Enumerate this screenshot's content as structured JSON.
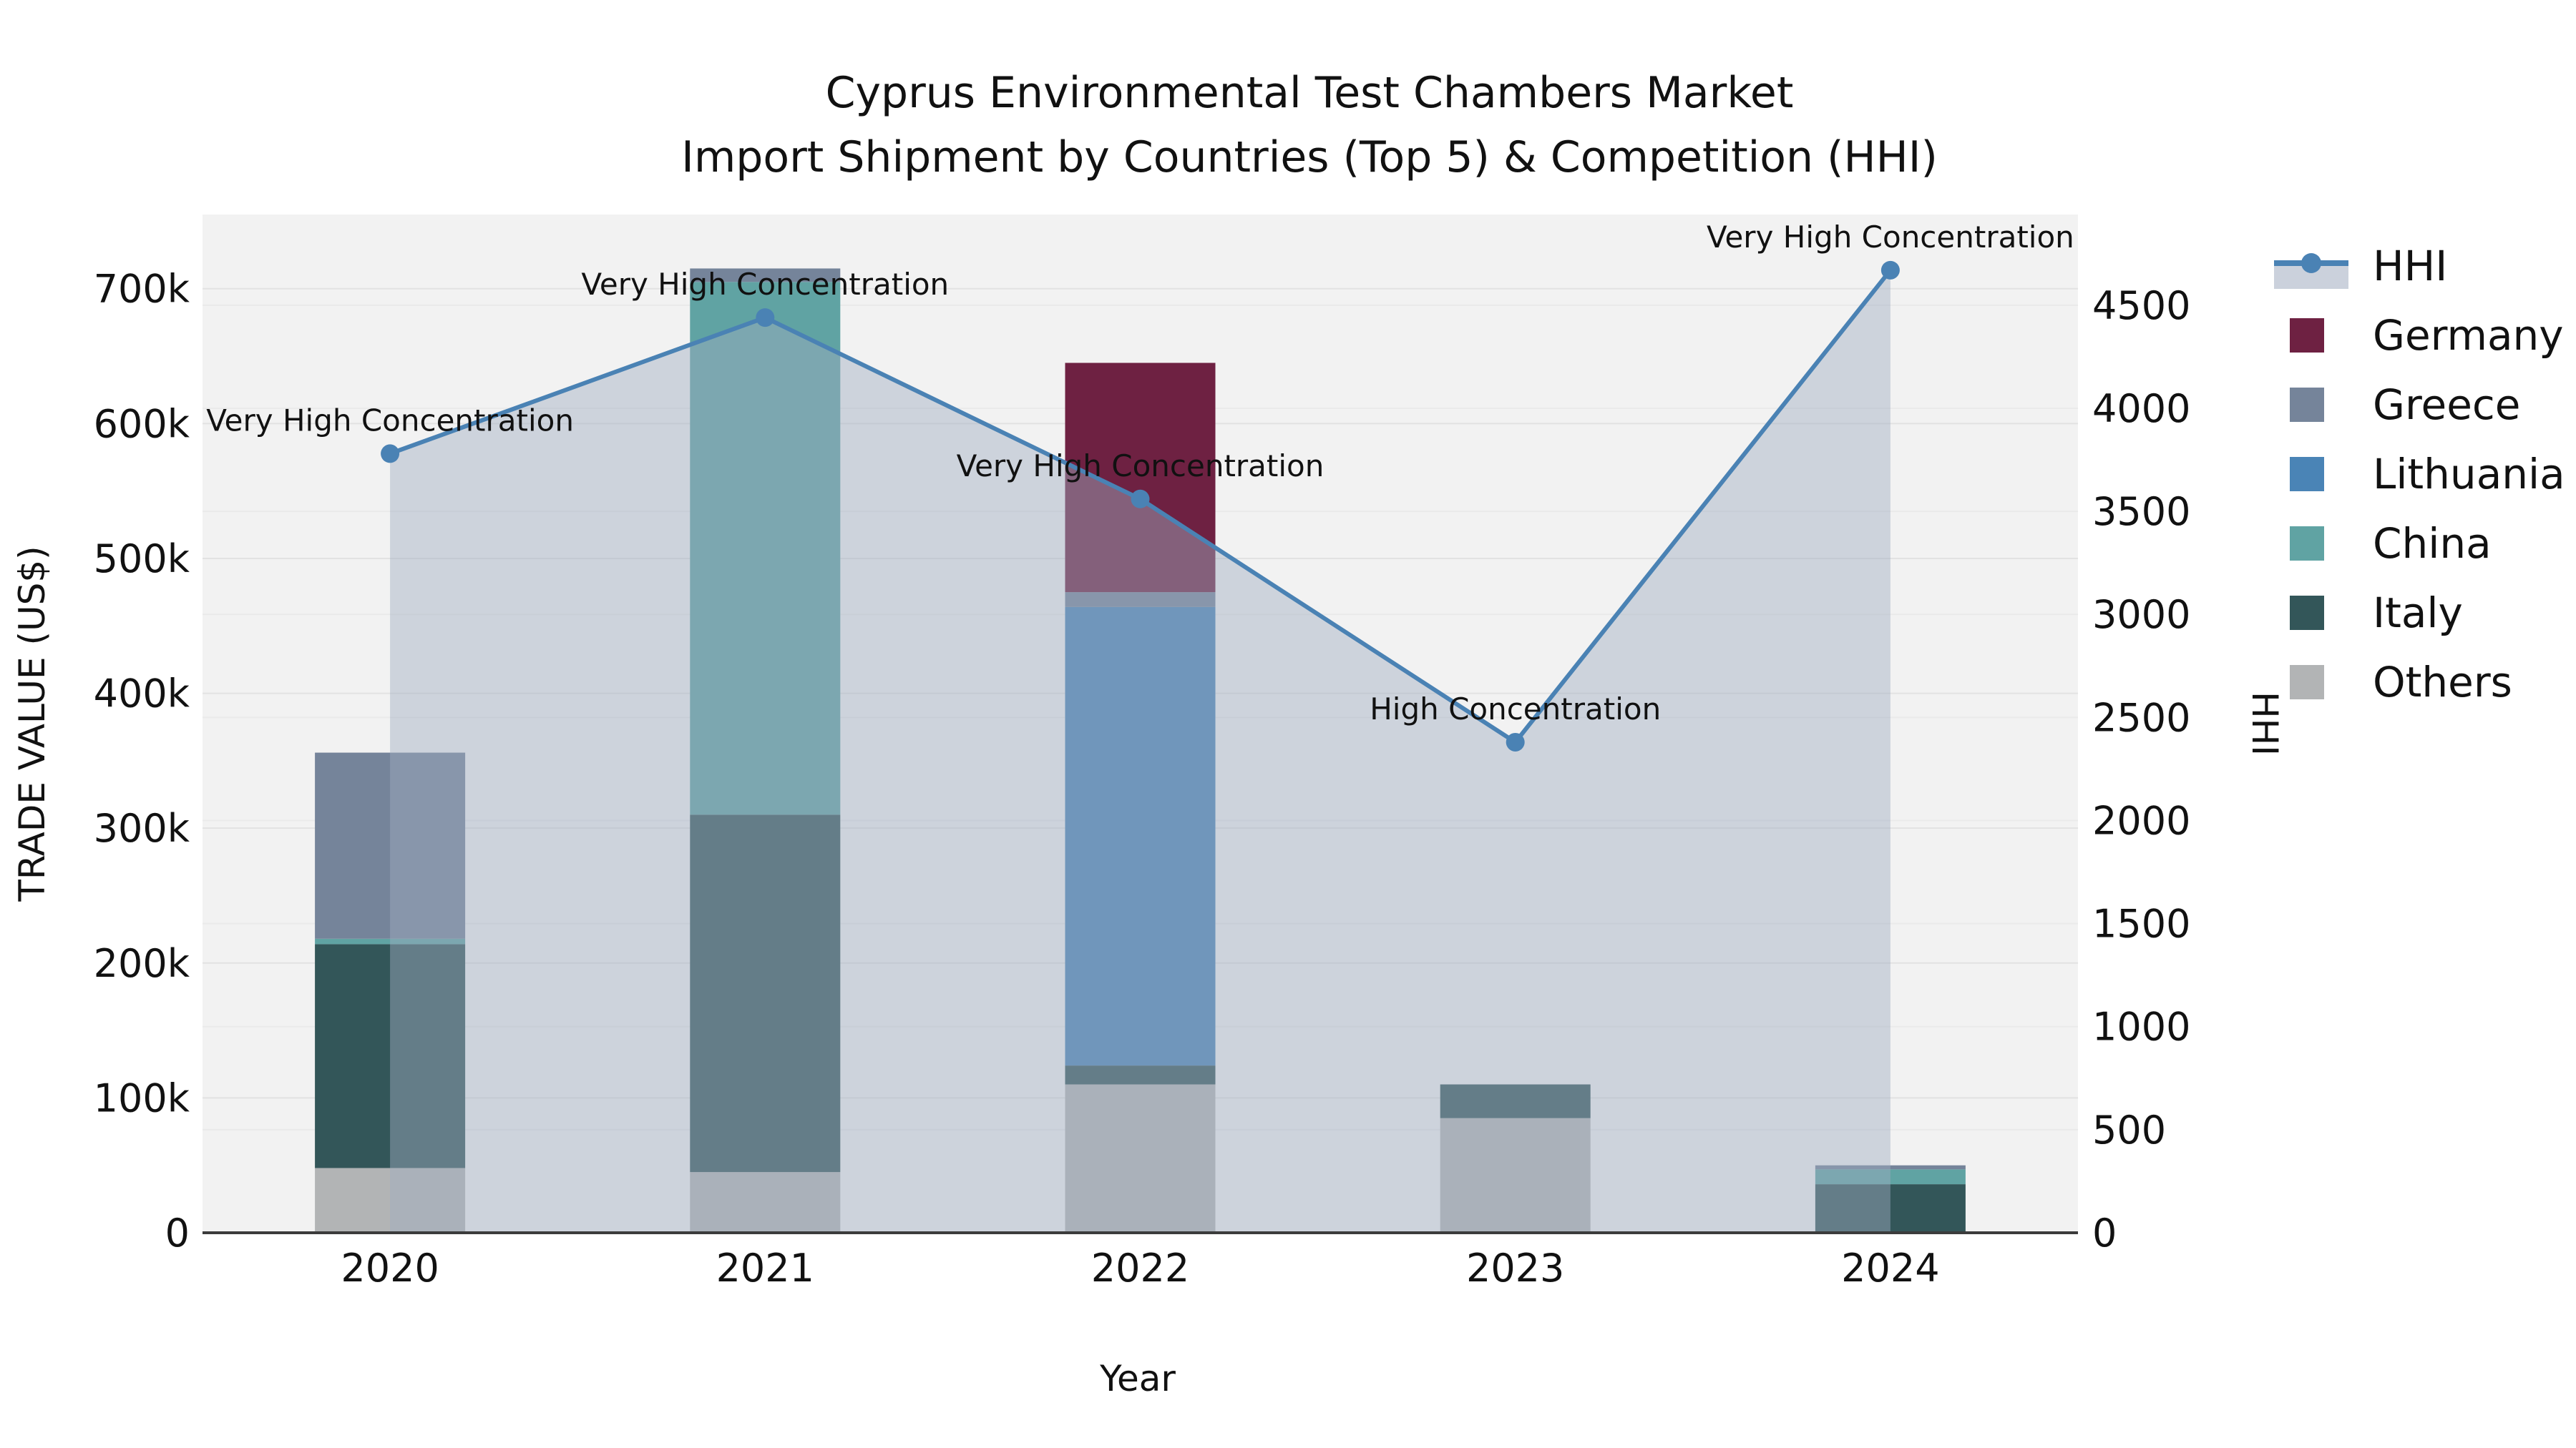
{
  "title": {
    "line1": "Cyprus Environmental Test Chambers Market",
    "line2": "Import Shipment by Countries (Top 5) & Competition (HHI)"
  },
  "axes": {
    "x_label": "Year",
    "y_left_label": "TRADE VALUE (US$)",
    "y_right_label": "HHI",
    "x_ticks": [
      "2020",
      "2021",
      "2022",
      "2023",
      "2024"
    ],
    "y_left_ticks": [
      "0",
      "100k",
      "200k",
      "300k",
      "400k",
      "500k",
      "600k",
      "700k"
    ],
    "y_left_tick_values": [
      0,
      100000,
      200000,
      300000,
      400000,
      500000,
      600000,
      700000
    ],
    "y_right_ticks": [
      "0",
      "500",
      "1000",
      "1500",
      "2000",
      "2500",
      "3000",
      "3500",
      "4000",
      "4500"
    ],
    "y_right_tick_values": [
      0,
      500,
      1000,
      1500,
      2000,
      2500,
      3000,
      3500,
      4000,
      4500
    ],
    "y_left_max": 755000,
    "y_right_max": 4940
  },
  "legend": [
    {
      "label": "HHI",
      "type": "line",
      "color": "#4a82b4"
    },
    {
      "label": "Germany",
      "type": "square",
      "color": "#6e2142"
    },
    {
      "label": "Greece",
      "type": "square",
      "color": "#75849a"
    },
    {
      "label": "Lithuania",
      "type": "square",
      "color": "#4a84b6"
    },
    {
      "label": "China",
      "type": "square",
      "color": "#60a3a3"
    },
    {
      "label": "Italy",
      "type": "square",
      "color": "#335659"
    },
    {
      "label": "Others",
      "type": "square",
      "color": "#b2b4b5"
    }
  ],
  "colors": {
    "plot_background": "#f2f2f2",
    "figure_background": "#ffffff",
    "gridline_left": "#e2e2e2",
    "gridline_right": "#eaeaea",
    "axis_line": "#3c3c3c",
    "hhi_line": "#4a82b4",
    "hhi_area_fill": "rgba(160,172,192,0.45)",
    "text": "#111111"
  },
  "chart_data": {
    "type": "combo (stacked bar + line area)",
    "title": "Cyprus Environmental Test Chambers Market — Import Shipment by Countries (Top 5) & Competition (HHI)",
    "xlabel": "Year",
    "ylabel_left": "TRADE VALUE (US$)",
    "ylabel_right": "HHI",
    "categories": [
      "2020",
      "2021",
      "2022",
      "2023",
      "2024"
    ],
    "stack_order": [
      "Others",
      "Italy",
      "Lithuania",
      "China",
      "Greece",
      "Germany"
    ],
    "bar_series": [
      {
        "name": "Others",
        "color": "#b2b4b5",
        "values": [
          48000,
          45000,
          110000,
          85000,
          0
        ]
      },
      {
        "name": "Italy",
        "color": "#335659",
        "values": [
          166000,
          265000,
          14000,
          25000,
          36000
        ]
      },
      {
        "name": "Lithuania",
        "color": "#4a84b6",
        "values": [
          0,
          0,
          340000,
          0,
          0
        ]
      },
      {
        "name": "China",
        "color": "#60a3a3",
        "values": [
          4000,
          395000,
          0,
          0,
          11000
        ]
      },
      {
        "name": "Greece",
        "color": "#75849a",
        "values": [
          138000,
          10000,
          11000,
          0,
          3000
        ]
      },
      {
        "name": "Germany",
        "color": "#6e2142",
        "values": [
          0,
          0,
          170000,
          0,
          0
        ]
      }
    ],
    "line_series": {
      "name": "HHI",
      "color": "#4a82b4",
      "values": [
        3780,
        4440,
        3560,
        2380,
        4670
      ]
    },
    "annotations": [
      {
        "x": "2020",
        "text": "Very High Concentration"
      },
      {
        "x": "2021",
        "text": "Very High Concentration"
      },
      {
        "x": "2022",
        "text": "Very High Concentration"
      },
      {
        "x": "2023",
        "text": "High Concentration"
      },
      {
        "x": "2024",
        "text": "Very High Concentration"
      }
    ],
    "ylim_left": [
      0,
      755000
    ],
    "ylim_right": [
      0,
      4940
    ],
    "grid": true,
    "legend_position": "right"
  }
}
